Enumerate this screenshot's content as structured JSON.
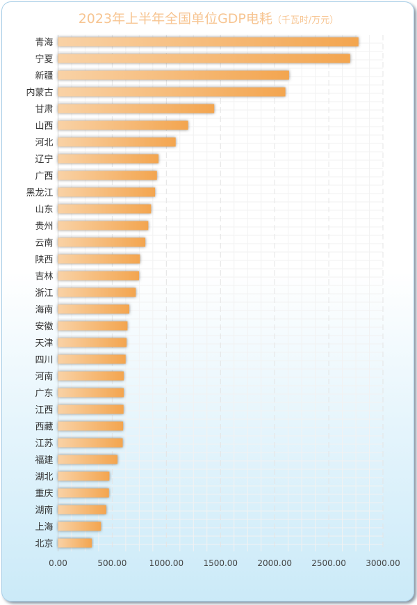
{
  "chart_data": {
    "type": "bar",
    "orientation": "horizontal",
    "title": "2023年上半年全国单位GDP电耗",
    "subtitle": "（千瓦时/万元）",
    "categories": [
      "青海",
      "宁夏",
      "新疆",
      "内蒙古",
      "甘肃",
      "山西",
      "河北",
      "辽宁",
      "广西",
      "黑龙江",
      "山东",
      "贵州",
      "云南",
      "陕西",
      "吉林",
      "浙江",
      "海南",
      "安徽",
      "天津",
      "四川",
      "河南",
      "广东",
      "江西",
      "西藏",
      "江苏",
      "福建",
      "湖北",
      "重庆",
      "湖南",
      "上海",
      "北京"
    ],
    "values": [
      2774,
      2697,
      2133,
      2099,
      1442,
      1201,
      1086,
      928,
      913,
      896,
      859,
      833,
      806,
      756,
      748,
      718,
      658,
      641,
      633,
      624,
      607,
      607,
      605,
      601,
      597,
      549,
      474,
      470,
      445,
      396,
      312
    ],
    "xlim": [
      0,
      3000
    ],
    "x_ticks": [
      "0.00",
      "500.00",
      "1000.00",
      "1500.00",
      "2000.00",
      "2500.00",
      "3000.00"
    ],
    "grid": true,
    "colors": {
      "bar_start": "#f9d2a6",
      "bar_end": "#f3a54f",
      "title": "#f7c592"
    }
  }
}
